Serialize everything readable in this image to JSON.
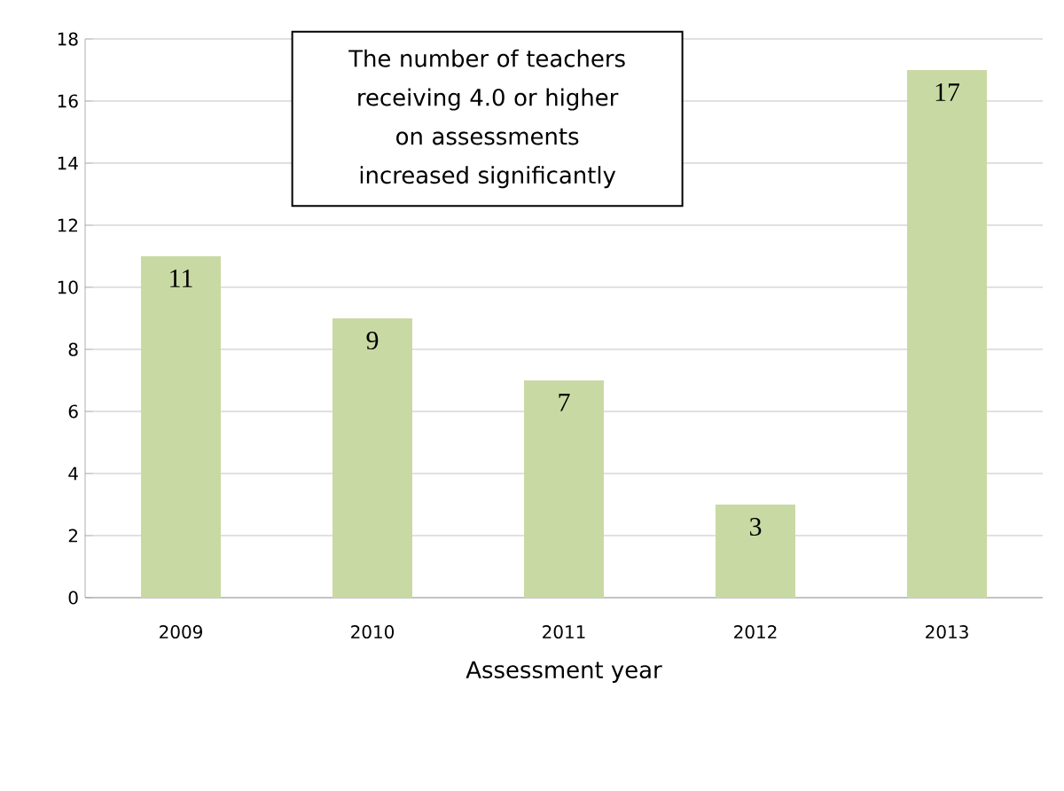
{
  "chart_data": {
    "type": "bar",
    "xlabel": "Assessment year",
    "categories": [
      "2009",
      "2010",
      "2011",
      "2012",
      "2013"
    ],
    "values": [
      11,
      9,
      7,
      3,
      17
    ],
    "color": "#c9d9a3",
    "ylim": [
      0,
      18
    ],
    "yticks": [
      0,
      2,
      4,
      6,
      8,
      10,
      12,
      14,
      16,
      18
    ],
    "grid": "y",
    "data_labels": true,
    "annotations": [
      "The number of teachers receiving 4.0 or higher on assessments increased significantly"
    ]
  }
}
